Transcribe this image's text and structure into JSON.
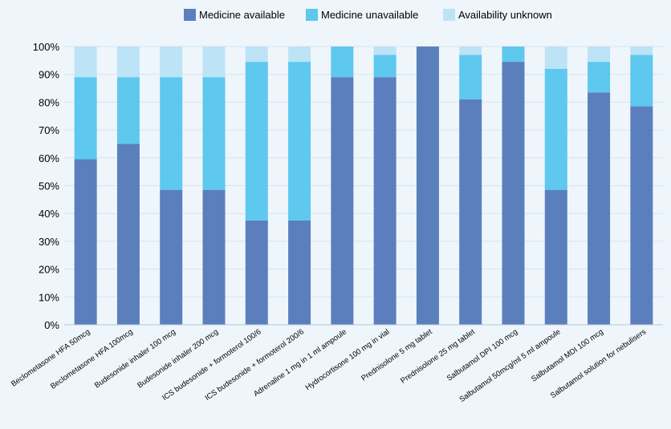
{
  "chart_data": {
    "type": "bar",
    "stacked": true,
    "categories": [
      "Beclometasone HFA 50mcg",
      "Beclometasone HFA 100mcg",
      "Budesonide inhaler 100 mcg",
      "Budesonide inhaler 200 mcg",
      "ICS budesonide + formoterol 100/6",
      "ICS budesonide + formoterol 200/6",
      "Adrenaline 1 mg in 1 ml ampoule",
      "Hydrocortisone 100 mg in vial",
      "Prednisolone 5 mg tablet",
      "Prednisolone 25 mg tablet",
      "Salbutamol DPI 100 mcg",
      "Salbutamol 50mcg/ml 5 ml ampoule",
      "Salbutamol MDI 100 mcg",
      "Salbutamol solution for nebulisers"
    ],
    "series": [
      {
        "name": "Medicine available",
        "color": "#5b7fbd",
        "values": [
          59.5,
          65,
          48.5,
          48.5,
          37.5,
          37.5,
          89,
          89,
          100,
          81,
          94.5,
          48.5,
          83.5,
          78.5
        ]
      },
      {
        "name": "Medicine unavailable",
        "color": "#5ec8ee",
        "values": [
          29.5,
          24,
          40.5,
          40.5,
          57,
          57,
          11,
          8,
          0,
          16,
          5.5,
          43.5,
          11,
          18.5
        ]
      },
      {
        "name": "Availability unknown",
        "color": "#bde3f7",
        "values": [
          11,
          11,
          11,
          11,
          5.5,
          5.5,
          0,
          3,
          0,
          3,
          0,
          8,
          5.5,
          3
        ]
      }
    ],
    "y_ticks": [
      "0%",
      "10%",
      "20%",
      "30%",
      "40%",
      "50%",
      "60%",
      "70%",
      "80%",
      "90%",
      "100%"
    ],
    "ylim": [
      0,
      100
    ],
    "legend_position": "top-center",
    "grid": true
  }
}
